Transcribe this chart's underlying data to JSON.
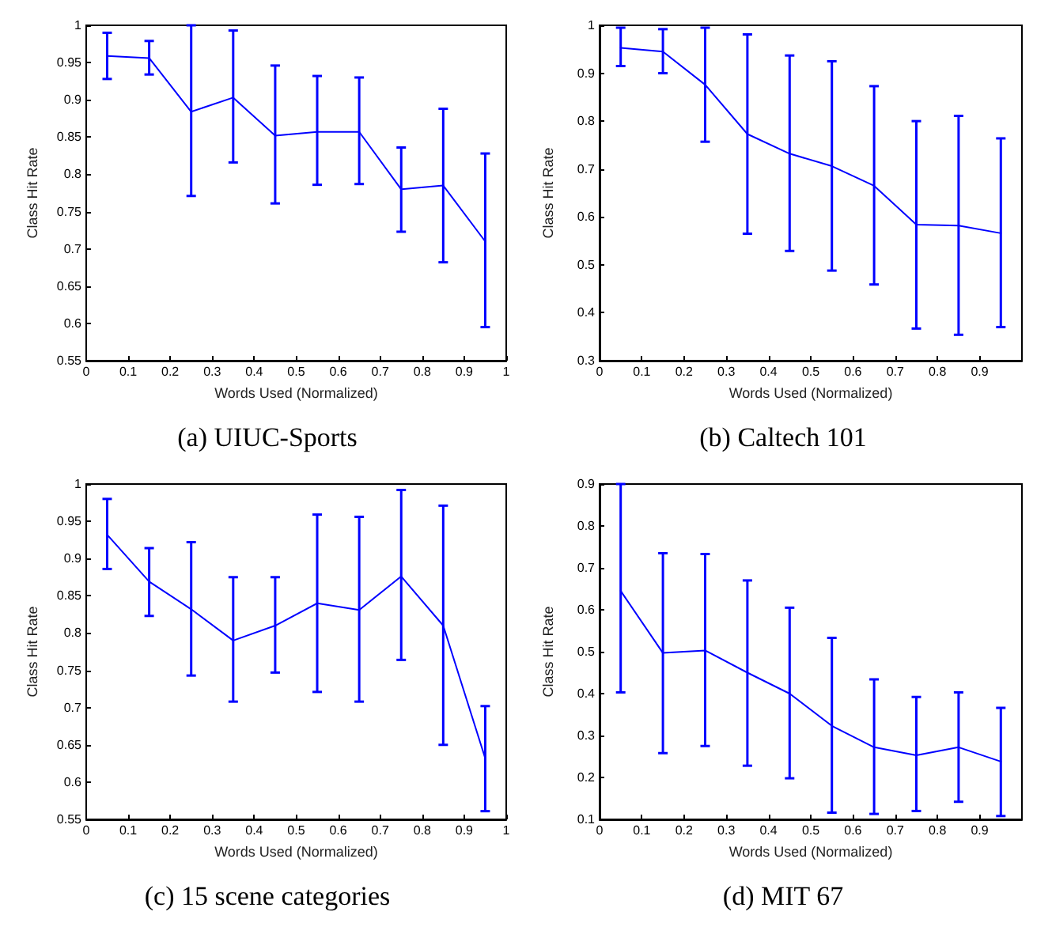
{
  "chart_data": [
    {
      "type": "line",
      "title": "(a) UIUC-Sports",
      "xlabel": "Words Used (Normalized)",
      "ylabel": "Class Hit Rate",
      "x": [
        0.05,
        0.15,
        0.25,
        0.35,
        0.45,
        0.55,
        0.65,
        0.75,
        0.85,
        0.95
      ],
      "series": [
        {
          "color": "#0000ff",
          "values": [
            0.959,
            0.956,
            0.884,
            0.903,
            0.852,
            0.857,
            0.857,
            0.78,
            0.785,
            0.71
          ],
          "errors": [
            [
              0.928,
              0.99
            ],
            [
              0.934,
              0.979
            ],
            [
              0.771,
              1.0
            ],
            [
              0.816,
              0.993
            ],
            [
              0.761,
              0.946
            ],
            [
              0.786,
              0.932
            ],
            [
              0.787,
              0.93
            ],
            [
              0.723,
              0.836
            ],
            [
              0.682,
              0.888
            ],
            [
              0.595,
              0.828
            ]
          ]
        }
      ],
      "xlim": [
        0,
        1
      ],
      "xticks": [
        0,
        0.1,
        0.2,
        0.3,
        0.4,
        0.5,
        0.6,
        0.7,
        0.8,
        0.9,
        1
      ],
      "ylim": [
        0.55,
        1
      ],
      "yticks": [
        0.55,
        0.6,
        0.65,
        0.7,
        0.75,
        0.8,
        0.85,
        0.9,
        0.95,
        1
      ],
      "grid": false,
      "marker": "none",
      "line_style": "solid"
    },
    {
      "type": "line",
      "title": "(b) Caltech 101",
      "xlabel": "Words Used (Normalized)",
      "ylabel": "Class Hit Rate",
      "x": [
        0.05,
        0.15,
        0.25,
        0.35,
        0.45,
        0.55,
        0.65,
        0.75,
        0.85,
        0.95
      ],
      "series": [
        {
          "color": "#0000ff",
          "values": [
            0.953,
            0.945,
            0.876,
            0.773,
            0.732,
            0.706,
            0.665,
            0.584,
            0.582,
            0.566
          ],
          "errors": [
            [
              0.915,
              0.995
            ],
            [
              0.9,
              0.992
            ],
            [
              0.757,
              0.995
            ],
            [
              0.565,
              0.981
            ],
            [
              0.529,
              0.937
            ],
            [
              0.488,
              0.925
            ],
            [
              0.459,
              0.873
            ],
            [
              0.367,
              0.8
            ],
            [
              0.354,
              0.811
            ],
            [
              0.37,
              0.764
            ]
          ]
        }
      ],
      "xlim": [
        0,
        1
      ],
      "xticks": [
        0,
        0.1,
        0.2,
        0.3,
        0.4,
        0.5,
        0.6,
        0.7,
        0.8,
        0.9
      ],
      "ylim": [
        0.3,
        1
      ],
      "yticks": [
        0.3,
        0.4,
        0.5,
        0.6,
        0.7,
        0.8,
        0.9,
        1
      ],
      "grid": false,
      "marker": "none",
      "line_style": "solid"
    },
    {
      "type": "line",
      "title": "(c) 15 scene categories",
      "xlabel": "Words Used (Normalized)",
      "ylabel": "Class Hit Rate",
      "x": [
        0.05,
        0.15,
        0.25,
        0.35,
        0.45,
        0.55,
        0.65,
        0.75,
        0.85,
        0.95
      ],
      "series": [
        {
          "color": "#0000ff",
          "values": [
            0.932,
            0.869,
            0.832,
            0.79,
            0.81,
            0.84,
            0.831,
            0.876,
            0.81,
            0.632
          ],
          "errors": [
            [
              0.886,
              0.98
            ],
            [
              0.823,
              0.914
            ],
            [
              0.743,
              0.922
            ],
            [
              0.708,
              0.875
            ],
            [
              0.747,
              0.875
            ],
            [
              0.721,
              0.959
            ],
            [
              0.708,
              0.956
            ],
            [
              0.764,
              0.992
            ],
            [
              0.65,
              0.971
            ],
            [
              0.561,
              0.702
            ]
          ]
        }
      ],
      "xlim": [
        0,
        1
      ],
      "xticks": [
        0,
        0.1,
        0.2,
        0.3,
        0.4,
        0.5,
        0.6,
        0.7,
        0.8,
        0.9,
        1
      ],
      "ylim": [
        0.55,
        1
      ],
      "yticks": [
        0.55,
        0.6,
        0.65,
        0.7,
        0.75,
        0.8,
        0.85,
        0.9,
        0.95,
        1
      ],
      "grid": false,
      "marker": "none",
      "line_style": "solid"
    },
    {
      "type": "line",
      "title": "(d) MIT 67",
      "xlabel": "Words Used (Normalized)",
      "ylabel": "Class Hit Rate",
      "x": [
        0.05,
        0.15,
        0.25,
        0.35,
        0.45,
        0.55,
        0.65,
        0.75,
        0.85,
        0.95
      ],
      "series": [
        {
          "color": "#0000ff",
          "values": [
            0.645,
            0.497,
            0.503,
            0.45,
            0.4,
            0.323,
            0.272,
            0.253,
            0.272,
            0.238
          ],
          "errors": [
            [
              0.403,
              0.9
            ],
            [
              0.258,
              0.735
            ],
            [
              0.275,
              0.733
            ],
            [
              0.228,
              0.67
            ],
            [
              0.198,
              0.605
            ],
            [
              0.116,
              0.533
            ],
            [
              0.113,
              0.434
            ],
            [
              0.12,
              0.392
            ],
            [
              0.142,
              0.403
            ],
            [
              0.108,
              0.366
            ]
          ]
        }
      ],
      "xlim": [
        0,
        1
      ],
      "xticks": [
        0,
        0.1,
        0.2,
        0.3,
        0.4,
        0.5,
        0.6,
        0.7,
        0.8,
        0.9
      ],
      "ylim": [
        0.1,
        0.9
      ],
      "yticks": [
        0.1,
        0.2,
        0.3,
        0.4,
        0.5,
        0.6,
        0.7,
        0.8,
        0.9
      ],
      "grid": false,
      "marker": "none",
      "line_style": "solid"
    }
  ]
}
